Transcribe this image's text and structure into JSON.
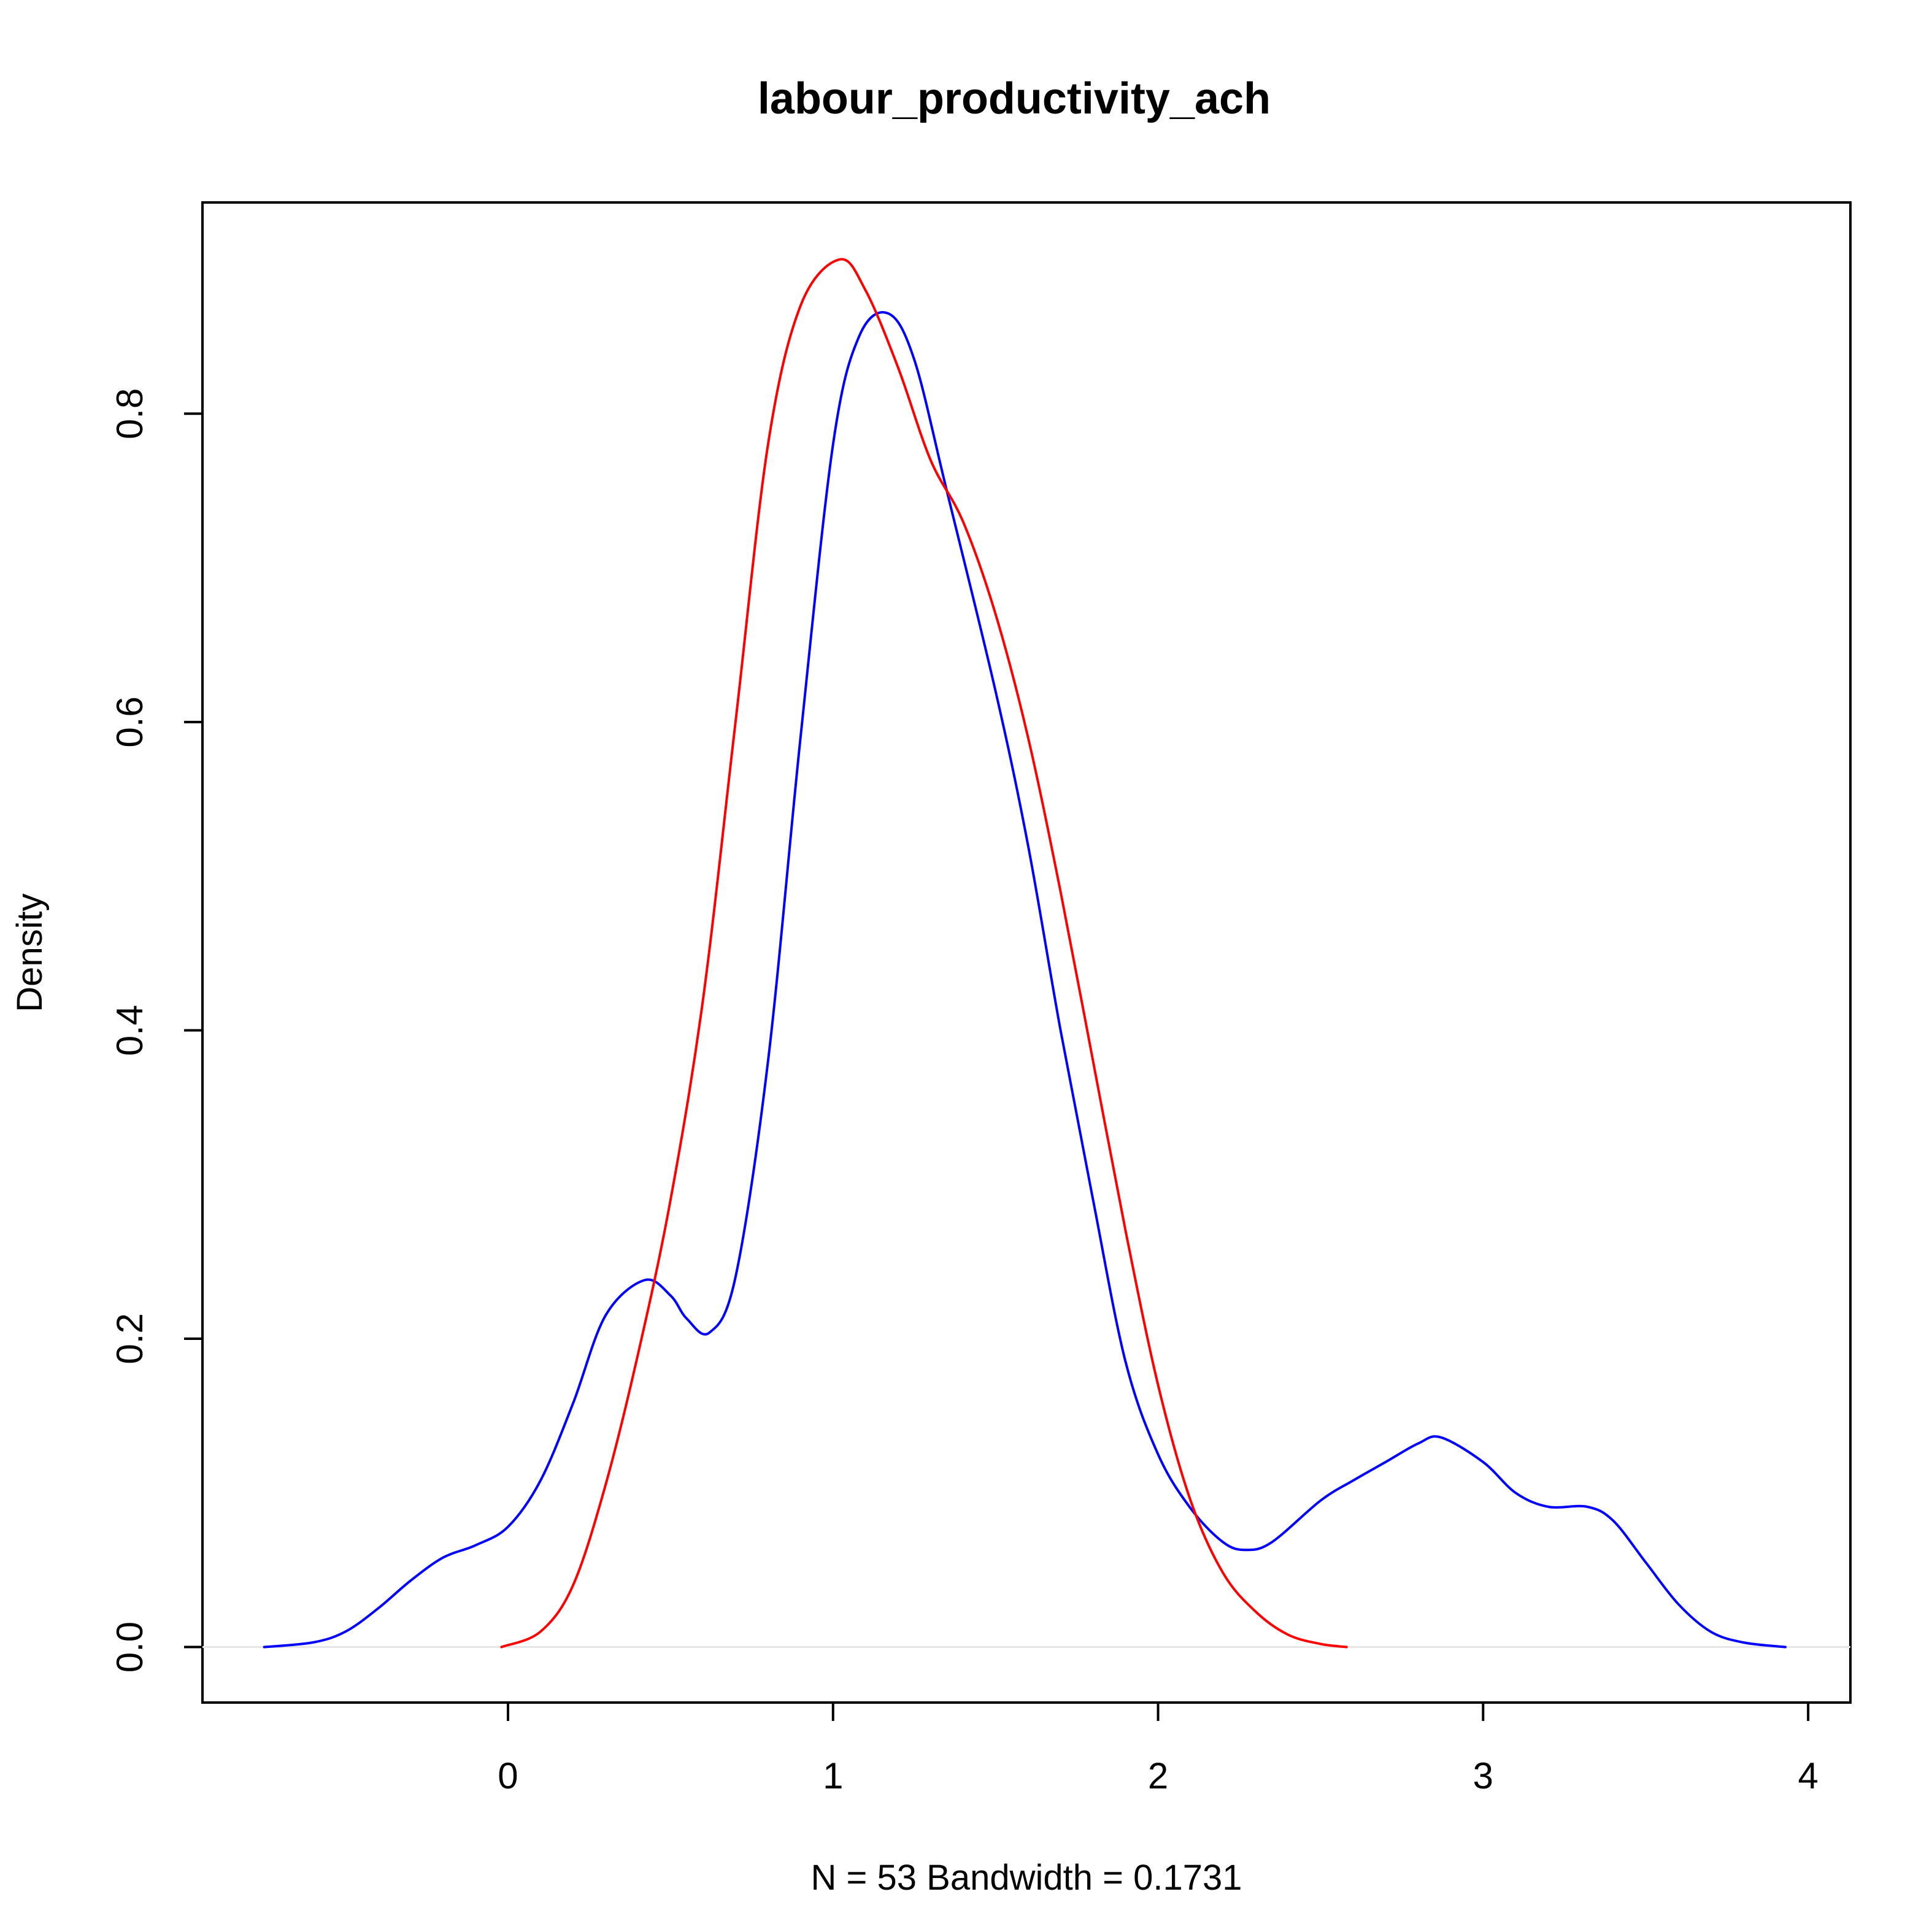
{
  "chart_data": {
    "type": "line",
    "title": "labour_productivity_ach",
    "xlabel": "N = 53   Bandwidth = 0.1731",
    "ylabel": "Density",
    "xlim": [
      -0.94,
      4.13
    ],
    "ylim": [
      -0.036,
      0.937
    ],
    "x_ticks": [
      0,
      1,
      2,
      3,
      4
    ],
    "x_tick_labels": [
      "0",
      "1",
      "2",
      "3",
      "4"
    ],
    "y_ticks": [
      0.0,
      0.2,
      0.4,
      0.6,
      0.8
    ],
    "y_tick_labels": [
      "0.0",
      "0.2",
      "0.4",
      "0.6",
      "0.8"
    ],
    "grid": false,
    "legend": "none",
    "baseline": 0,
    "series": [
      {
        "color": "#0000ff",
        "points": [
          [
            -0.75,
            0.0
          ],
          [
            -0.6,
            0.003
          ],
          [
            -0.5,
            0.01
          ],
          [
            -0.4,
            0.025
          ],
          [
            -0.3,
            0.043
          ],
          [
            -0.2,
            0.058
          ],
          [
            -0.1,
            0.066
          ],
          [
            0.0,
            0.078
          ],
          [
            0.1,
            0.108
          ],
          [
            0.2,
            0.158
          ],
          [
            0.3,
            0.215
          ],
          [
            0.42,
            0.238
          ],
          [
            0.5,
            0.228
          ],
          [
            0.55,
            0.213
          ],
          [
            0.62,
            0.204
          ],
          [
            0.7,
            0.24
          ],
          [
            0.8,
            0.38
          ],
          [
            0.9,
            0.59
          ],
          [
            1.0,
            0.78
          ],
          [
            1.08,
            0.85
          ],
          [
            1.17,
            0.865
          ],
          [
            1.25,
            0.835
          ],
          [
            1.35,
            0.75
          ],
          [
            1.5,
            0.62
          ],
          [
            1.6,
            0.52
          ],
          [
            1.7,
            0.4
          ],
          [
            1.8,
            0.29
          ],
          [
            1.9,
            0.185
          ],
          [
            2.0,
            0.125
          ],
          [
            2.1,
            0.09
          ],
          [
            2.2,
            0.068
          ],
          [
            2.27,
            0.063
          ],
          [
            2.35,
            0.068
          ],
          [
            2.5,
            0.095
          ],
          [
            2.6,
            0.108
          ],
          [
            2.7,
            0.12
          ],
          [
            2.8,
            0.132
          ],
          [
            2.87,
            0.136
          ],
          [
            3.0,
            0.12
          ],
          [
            3.1,
            0.1
          ],
          [
            3.2,
            0.091
          ],
          [
            3.32,
            0.091
          ],
          [
            3.4,
            0.082
          ],
          [
            3.5,
            0.055
          ],
          [
            3.6,
            0.028
          ],
          [
            3.7,
            0.01
          ],
          [
            3.8,
            0.003
          ],
          [
            3.93,
            0.0
          ]
        ]
      },
      {
        "color": "#ff0000",
        "points": [
          [
            -0.02,
            0.0
          ],
          [
            0.1,
            0.01
          ],
          [
            0.2,
            0.04
          ],
          [
            0.3,
            0.105
          ],
          [
            0.4,
            0.19
          ],
          [
            0.5,
            0.29
          ],
          [
            0.6,
            0.42
          ],
          [
            0.7,
            0.6
          ],
          [
            0.8,
            0.78
          ],
          [
            0.9,
            0.87
          ],
          [
            1.02,
            0.9
          ],
          [
            1.1,
            0.88
          ],
          [
            1.2,
            0.83
          ],
          [
            1.3,
            0.77
          ],
          [
            1.4,
            0.73
          ],
          [
            1.5,
            0.67
          ],
          [
            1.6,
            0.59
          ],
          [
            1.7,
            0.49
          ],
          [
            1.8,
            0.38
          ],
          [
            1.9,
            0.27
          ],
          [
            2.0,
            0.17
          ],
          [
            2.1,
            0.095
          ],
          [
            2.2,
            0.048
          ],
          [
            2.3,
            0.023
          ],
          [
            2.4,
            0.008
          ],
          [
            2.5,
            0.002
          ],
          [
            2.58,
            0.0
          ]
        ]
      }
    ]
  }
}
